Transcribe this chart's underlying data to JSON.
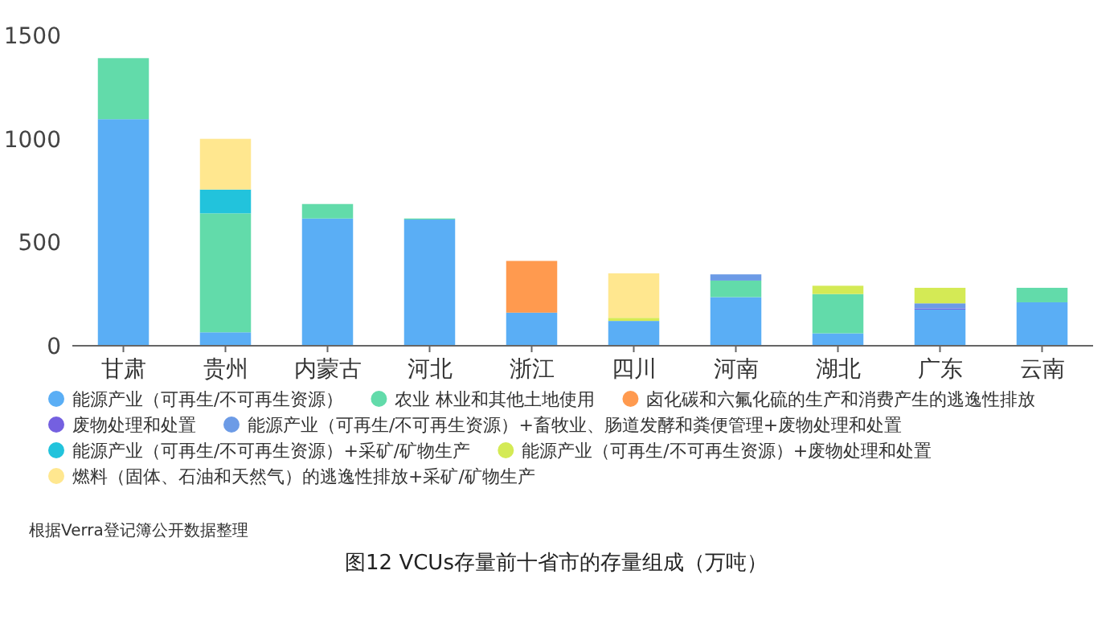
{
  "chart_data": {
    "type": "bar",
    "stacked": true,
    "title": "图12 VCUs存量前十省市的存量组成（万吨）",
    "annotations": [
      "根据Verra登记簿公开数据整理"
    ],
    "categories": [
      "甘肃",
      "贵州",
      "内蒙古",
      "河北",
      "浙江",
      "四川",
      "河南",
      "湖北",
      "广东",
      "云南"
    ],
    "ylim": [
      0,
      1500
    ],
    "yticks": [
      0,
      500,
      1000,
      1500
    ],
    "grid": false,
    "legend": "bottom",
    "series": [
      {
        "name": "能源产业（可再生/不可再生资源）",
        "color": "#5aaef5",
        "values": [
          1095,
          65,
          615,
          610,
          160,
          120,
          235,
          60,
          175,
          210
        ]
      },
      {
        "name": "农业 林业和其他土地使用",
        "color": "#62dbaa",
        "values": [
          295,
          575,
          70,
          5,
          null,
          null,
          80,
          190,
          null,
          70
        ]
      },
      {
        "name": "卤化碳和六氟化硫的生产和消费产生的逃逸性排放",
        "color": "#ff9a4f",
        "values": [
          null,
          null,
          null,
          null,
          250,
          null,
          null,
          null,
          null,
          null
        ]
      },
      {
        "name": "废物处理和处置",
        "color": "#7460e0",
        "values": [
          null,
          null,
          null,
          null,
          null,
          null,
          null,
          null,
          5,
          null
        ]
      },
      {
        "name": "能源产业（可再生/不可再生资源）+畜牧业、肠道发酵和粪便管理+废物处理和处置",
        "color": "#6c9be6",
        "values": [
          null,
          null,
          null,
          null,
          null,
          null,
          30,
          null,
          25,
          null
        ]
      },
      {
        "name": "能源产业（可再生/不可再生资源）+采矿/矿物生产",
        "color": "#22c3dc",
        "values": [
          null,
          115,
          null,
          null,
          null,
          null,
          null,
          null,
          null,
          null
        ]
      },
      {
        "name": "能源产业（可再生/不可再生资源）+废物处理和处置",
        "color": "#d4ea55",
        "values": [
          null,
          null,
          null,
          null,
          null,
          15,
          null,
          40,
          75,
          null
        ]
      },
      {
        "name": "燃料（固体、石油和天然气）的逃逸性排放+采矿/矿物生产",
        "color": "#ffe78f",
        "values": [
          null,
          245,
          null,
          null,
          null,
          215,
          null,
          null,
          null,
          null
        ]
      }
    ]
  }
}
